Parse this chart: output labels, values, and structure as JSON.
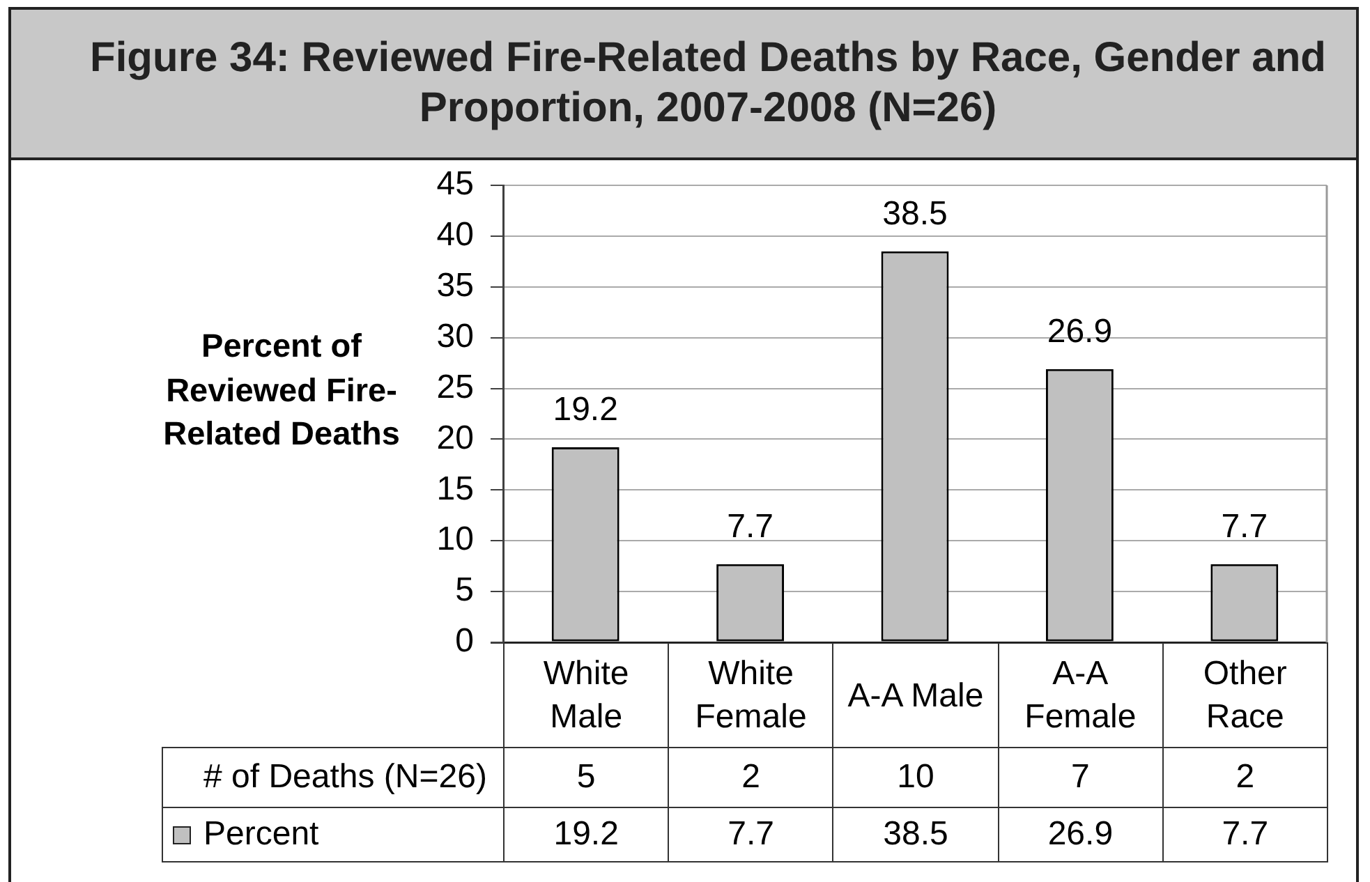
{
  "chart_data": {
    "type": "bar",
    "title": "Figure 34: Reviewed Fire-Related Deaths by Race, Gender and Proportion, 2007-2008 (N=26)",
    "ylabel": "Percent of Reviewed Fire-Related Deaths",
    "categories": [
      "White Male",
      "White Female",
      "A-A Male",
      "A-A Female",
      "Other Race"
    ],
    "series": [
      {
        "name": "Percent",
        "color": "#c0c0c0",
        "values": [
          19.2,
          7.7,
          38.5,
          26.9,
          7.7
        ]
      }
    ],
    "ylim": [
      0,
      45
    ],
    "yticks": [
      0,
      5,
      10,
      15,
      20,
      25,
      30,
      35,
      40,
      45
    ],
    "grid": "y",
    "legend": "bottom",
    "data_labels": true,
    "annotations": [
      "# of Deaths (N=26)",
      "5",
      "2",
      "10",
      "7",
      "2",
      "19.2",
      "7.7",
      "38.5",
      "26.9",
      "7.7"
    ]
  }
}
